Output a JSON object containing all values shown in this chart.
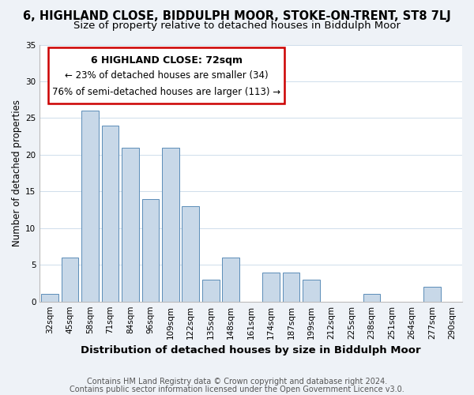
{
  "title": "6, HIGHLAND CLOSE, BIDDULPH MOOR, STOKE-ON-TRENT, ST8 7LJ",
  "subtitle": "Size of property relative to detached houses in Biddulph Moor",
  "xlabel": "Distribution of detached houses by size in Biddulph Moor",
  "ylabel": "Number of detached properties",
  "categories": [
    "32sqm",
    "45sqm",
    "58sqm",
    "71sqm",
    "84sqm",
    "96sqm",
    "109sqm",
    "122sqm",
    "135sqm",
    "148sqm",
    "161sqm",
    "174sqm",
    "187sqm",
    "199sqm",
    "212sqm",
    "225sqm",
    "238sqm",
    "251sqm",
    "264sqm",
    "277sqm",
    "290sqm"
  ],
  "values": [
    1,
    6,
    26,
    24,
    21,
    14,
    21,
    13,
    3,
    6,
    0,
    4,
    4,
    3,
    0,
    0,
    1,
    0,
    0,
    2,
    0
  ],
  "bar_color": "#c8d8e8",
  "bar_edge_color": "#5b8db8",
  "ylim": [
    0,
    35
  ],
  "yticks": [
    0,
    5,
    10,
    15,
    20,
    25,
    30,
    35
  ],
  "annotation_box_title": "6 HIGHLAND CLOSE: 72sqm",
  "annotation_line1": "← 23% of detached houses are smaller (34)",
  "annotation_line2": "76% of semi-detached houses are larger (113) →",
  "annotation_box_color": "#ffffff",
  "annotation_box_edge_color": "#cc0000",
  "footer_line1": "Contains HM Land Registry data © Crown copyright and database right 2024.",
  "footer_line2": "Contains public sector information licensed under the Open Government Licence v3.0.",
  "bg_color": "#eef2f7",
  "plot_bg_color": "#ffffff",
  "title_fontsize": 10.5,
  "subtitle_fontsize": 9.5,
  "xlabel_fontsize": 9.5,
  "ylabel_fontsize": 8.5,
  "tick_fontsize": 7.5,
  "annotation_title_fontsize": 9,
  "annotation_fontsize": 8.5,
  "footer_fontsize": 7
}
